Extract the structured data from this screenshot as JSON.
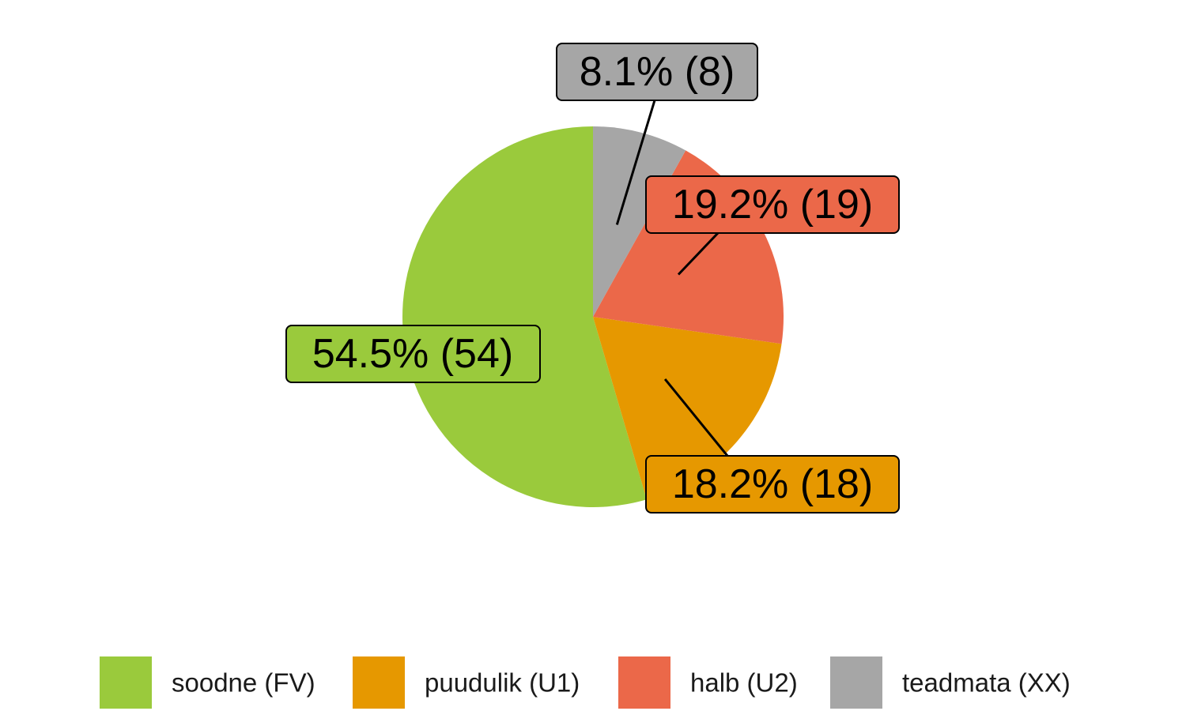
{
  "chart_data": {
    "type": "pie",
    "start_angle": "12 o'clock",
    "direction": "counterclockwise",
    "slices": [
      {
        "name": "soodne (FV)",
        "percent": 54.5,
        "count": 54,
        "label": "54.5% (54)",
        "color": "#9ACA3C"
      },
      {
        "name": "puudulik (U1)",
        "percent": 18.2,
        "count": 18,
        "label": "18.2% (18)",
        "color": "#E69800"
      },
      {
        "name": "halb (U2)",
        "percent": 19.2,
        "count": 19,
        "label": "19.2% (19)",
        "color": "#EB6849"
      },
      {
        "name": "teadmata (XX)",
        "percent": 8.1,
        "count": 8,
        "label": "8.1% (8)",
        "color": "#A6A6A6"
      }
    ],
    "legend": {
      "position": "bottom",
      "entries": [
        "soodne (FV)",
        "puudulik (U1)",
        "halb (U2)",
        "teadmata (XX)"
      ]
    }
  }
}
